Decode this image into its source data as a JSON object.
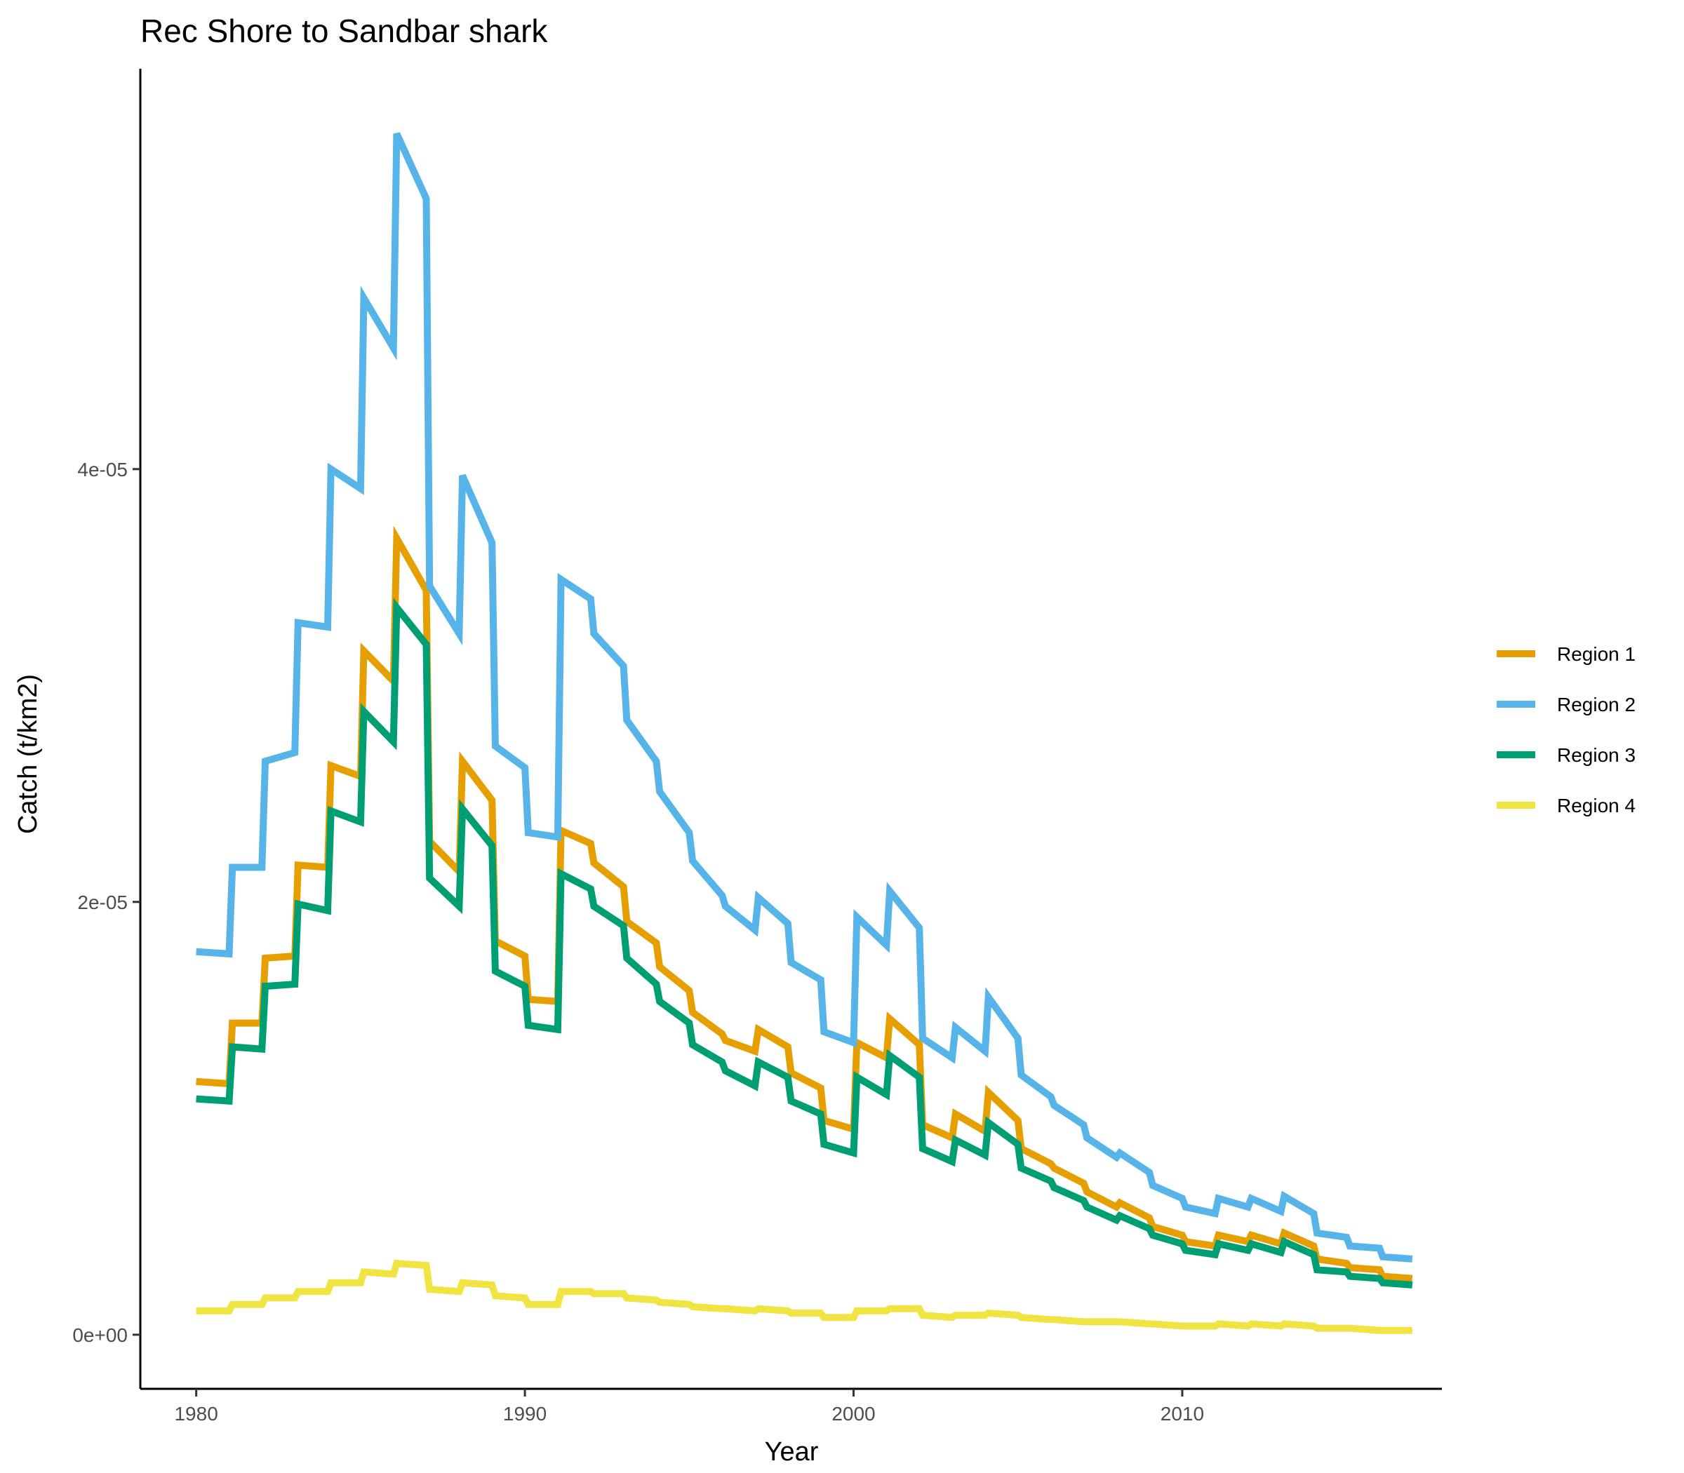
{
  "chart_data": {
    "type": "line",
    "title": "Rec Shore to Sandbar shark",
    "xlabel": "Year",
    "ylabel": "Catch (t/km2)",
    "xlim": [
      1978.3,
      2017.9
    ],
    "ylim": [
      -2.5e-06,
      5.85e-05
    ],
    "x_ticks": [
      1980,
      1990,
      2000,
      2010
    ],
    "x_tick_labels": [
      "1980",
      "1990",
      "2000",
      "2010"
    ],
    "y_ticks": [
      0,
      2e-05,
      4e-05
    ],
    "y_tick_labels": [
      "0e+00",
      "2e-05",
      "4e-05"
    ],
    "grid": false,
    "legend_position": "right",
    "series": [
      {
        "name": "Region 1",
        "color": "#E69F00",
        "points": [
          [
            1980,
            1.17e-05
          ],
          [
            1981,
            1.16e-05
          ],
          [
            1981.1,
            1.44e-05
          ],
          [
            1982,
            1.44e-05
          ],
          [
            1982.1,
            1.74e-05
          ],
          [
            1983,
            1.75e-05
          ],
          [
            1983.1,
            2.17e-05
          ],
          [
            1984,
            2.16e-05
          ],
          [
            1984.1,
            2.63e-05
          ],
          [
            1985,
            2.58e-05
          ],
          [
            1985.1,
            3.16e-05
          ],
          [
            1986,
            3.02e-05
          ],
          [
            1986.1,
            3.68e-05
          ],
          [
            1987,
            3.44e-05
          ],
          [
            1987.1,
            2.28e-05
          ],
          [
            1988,
            2.14e-05
          ],
          [
            1988.1,
            2.65e-05
          ],
          [
            1989,
            2.47e-05
          ],
          [
            1989.1,
            1.82e-05
          ],
          [
            1990,
            1.75e-05
          ],
          [
            1990.1,
            1.55e-05
          ],
          [
            1991,
            1.54e-05
          ],
          [
            1991.1,
            2.33e-05
          ],
          [
            1992,
            2.27e-05
          ],
          [
            1992.1,
            2.18e-05
          ],
          [
            1993,
            2.07e-05
          ],
          [
            1993.1,
            1.91e-05
          ],
          [
            1994,
            1.81e-05
          ],
          [
            1994.1,
            1.7e-05
          ],
          [
            1995,
            1.59e-05
          ],
          [
            1995.1,
            1.49e-05
          ],
          [
            1996,
            1.39e-05
          ],
          [
            1996.1,
            1.36e-05
          ],
          [
            1997,
            1.31e-05
          ],
          [
            1997.1,
            1.41e-05
          ],
          [
            1998,
            1.33e-05
          ],
          [
            1998.1,
            1.21e-05
          ],
          [
            1999,
            1.14e-05
          ],
          [
            1999.1,
            9.9e-06
          ],
          [
            2000,
            9.5e-06
          ],
          [
            2000.1,
            1.35e-05
          ],
          [
            2001,
            1.28e-05
          ],
          [
            2001.1,
            1.46e-05
          ],
          [
            2002,
            1.34e-05
          ],
          [
            2002.1,
            9.7e-06
          ],
          [
            2003,
            9.1e-06
          ],
          [
            2003.1,
            1.02e-05
          ],
          [
            2004,
            9.4e-06
          ],
          [
            2004.1,
            1.12e-05
          ],
          [
            2005,
            9.9e-06
          ],
          [
            2005.1,
            8.6e-06
          ],
          [
            2006,
            7.9e-06
          ],
          [
            2006.1,
            7.7e-06
          ],
          [
            2007,
            7e-06
          ],
          [
            2007.1,
            6.6e-06
          ],
          [
            2008,
            5.9e-06
          ],
          [
            2008.1,
            6.1e-06
          ],
          [
            2009,
            5.4e-06
          ],
          [
            2009.1,
            5e-06
          ],
          [
            2010,
            4.6e-06
          ],
          [
            2010.1,
            4.3e-06
          ],
          [
            2011,
            4.1e-06
          ],
          [
            2011.1,
            4.6e-06
          ],
          [
            2012,
            4.3e-06
          ],
          [
            2012.1,
            4.6e-06
          ],
          [
            2013,
            4.2e-06
          ],
          [
            2013.1,
            4.7e-06
          ],
          [
            2014,
            4.1e-06
          ],
          [
            2014.1,
            3.5e-06
          ],
          [
            2015,
            3.3e-06
          ],
          [
            2015.1,
            3.1e-06
          ],
          [
            2016,
            3e-06
          ],
          [
            2016.1,
            2.7e-06
          ],
          [
            2017,
            2.6e-06
          ]
        ]
      },
      {
        "name": "Region 2",
        "color": "#56B4E9",
        "points": [
          [
            1980,
            1.77e-05
          ],
          [
            1981,
            1.76e-05
          ],
          [
            1981.1,
            2.16e-05
          ],
          [
            1982,
            2.16e-05
          ],
          [
            1982.1,
            2.65e-05
          ],
          [
            1983,
            2.69e-05
          ],
          [
            1983.1,
            3.29e-05
          ],
          [
            1984,
            3.27e-05
          ],
          [
            1984.1,
            4e-05
          ],
          [
            1985,
            3.91e-05
          ],
          [
            1985.1,
            4.79e-05
          ],
          [
            1986,
            4.56e-05
          ],
          [
            1986.1,
            5.55e-05
          ],
          [
            1987,
            5.25e-05
          ],
          [
            1987.1,
            3.46e-05
          ],
          [
            1988,
            3.24e-05
          ],
          [
            1988.1,
            3.97e-05
          ],
          [
            1989,
            3.66e-05
          ],
          [
            1989.1,
            2.72e-05
          ],
          [
            1990,
            2.62e-05
          ],
          [
            1990.1,
            2.32e-05
          ],
          [
            1991,
            2.3e-05
          ],
          [
            1991.1,
            3.49e-05
          ],
          [
            1992,
            3.4e-05
          ],
          [
            1992.1,
            3.24e-05
          ],
          [
            1993,
            3.09e-05
          ],
          [
            1993.1,
            2.84e-05
          ],
          [
            1994,
            2.65e-05
          ],
          [
            1994.1,
            2.51e-05
          ],
          [
            1995,
            2.32e-05
          ],
          [
            1995.1,
            2.19e-05
          ],
          [
            1996,
            2.03e-05
          ],
          [
            1996.1,
            1.98e-05
          ],
          [
            1997,
            1.87e-05
          ],
          [
            1997.1,
            2.02e-05
          ],
          [
            1998,
            1.9e-05
          ],
          [
            1998.1,
            1.72e-05
          ],
          [
            1999,
            1.64e-05
          ],
          [
            1999.1,
            1.4e-05
          ],
          [
            2000,
            1.35e-05
          ],
          [
            2000.1,
            1.93e-05
          ],
          [
            2001,
            1.8e-05
          ],
          [
            2001.1,
            2.05e-05
          ],
          [
            2002,
            1.88e-05
          ],
          [
            2002.1,
            1.37e-05
          ],
          [
            2003,
            1.28e-05
          ],
          [
            2003.1,
            1.42e-05
          ],
          [
            2004,
            1.31e-05
          ],
          [
            2004.1,
            1.56e-05
          ],
          [
            2005,
            1.37e-05
          ],
          [
            2005.1,
            1.2e-05
          ],
          [
            2006,
            1.1e-05
          ],
          [
            2006.1,
            1.06e-05
          ],
          [
            2007,
            9.7e-06
          ],
          [
            2007.1,
            9.1e-06
          ],
          [
            2008,
            8.2e-06
          ],
          [
            2008.1,
            8.4e-06
          ],
          [
            2009,
            7.5e-06
          ],
          [
            2009.1,
            6.9e-06
          ],
          [
            2010,
            6.3e-06
          ],
          [
            2010.1,
            5.9e-06
          ],
          [
            2011,
            5.6e-06
          ],
          [
            2011.1,
            6.3e-06
          ],
          [
            2012,
            5.9e-06
          ],
          [
            2012.1,
            6.3e-06
          ],
          [
            2013,
            5.7e-06
          ],
          [
            2013.1,
            6.4e-06
          ],
          [
            2014,
            5.6e-06
          ],
          [
            2014.1,
            4.7e-06
          ],
          [
            2015,
            4.5e-06
          ],
          [
            2015.1,
            4.1e-06
          ],
          [
            2016,
            4e-06
          ],
          [
            2016.1,
            3.6e-06
          ],
          [
            2017,
            3.5e-06
          ]
        ]
      },
      {
        "name": "Region 3",
        "color": "#009E73",
        "points": [
          [
            1980,
            1.09e-05
          ],
          [
            1981,
            1.08e-05
          ],
          [
            1981.1,
            1.33e-05
          ],
          [
            1982,
            1.32e-05
          ],
          [
            1982.1,
            1.61e-05
          ],
          [
            1983,
            1.62e-05
          ],
          [
            1983.1,
            1.99e-05
          ],
          [
            1984,
            1.96e-05
          ],
          [
            1984.1,
            2.42e-05
          ],
          [
            1985,
            2.37e-05
          ],
          [
            1985.1,
            2.88e-05
          ],
          [
            1986,
            2.74e-05
          ],
          [
            1986.1,
            3.36e-05
          ],
          [
            1987,
            3.19e-05
          ],
          [
            1987.1,
            2.11e-05
          ],
          [
            1988,
            1.98e-05
          ],
          [
            1988.1,
            2.43e-05
          ],
          [
            1989,
            2.26e-05
          ],
          [
            1989.1,
            1.68e-05
          ],
          [
            1990,
            1.61e-05
          ],
          [
            1990.1,
            1.43e-05
          ],
          [
            1991,
            1.41e-05
          ],
          [
            1991.1,
            2.13e-05
          ],
          [
            1992,
            2.06e-05
          ],
          [
            1992.1,
            1.98e-05
          ],
          [
            1993,
            1.89e-05
          ],
          [
            1993.1,
            1.74e-05
          ],
          [
            1994,
            1.62e-05
          ],
          [
            1994.1,
            1.54e-05
          ],
          [
            1995,
            1.44e-05
          ],
          [
            1995.1,
            1.34e-05
          ],
          [
            1996,
            1.26e-05
          ],
          [
            1996.1,
            1.22e-05
          ],
          [
            1997,
            1.15e-05
          ],
          [
            1997.1,
            1.26e-05
          ],
          [
            1998,
            1.19e-05
          ],
          [
            1998.1,
            1.08e-05
          ],
          [
            1999,
            1.02e-05
          ],
          [
            1999.1,
            8.8e-06
          ],
          [
            2000,
            8.4e-06
          ],
          [
            2000.1,
            1.19e-05
          ],
          [
            2001,
            1.11e-05
          ],
          [
            2001.1,
            1.29e-05
          ],
          [
            2002,
            1.19e-05
          ],
          [
            2002.1,
            8.6e-06
          ],
          [
            2003,
            8e-06
          ],
          [
            2003.1,
            9e-06
          ],
          [
            2004,
            8.3e-06
          ],
          [
            2004.1,
            9.8e-06
          ],
          [
            2005,
            8.8e-06
          ],
          [
            2005.1,
            7.7e-06
          ],
          [
            2006,
            7.1e-06
          ],
          [
            2006.1,
            6.8e-06
          ],
          [
            2007,
            6.2e-06
          ],
          [
            2007.1,
            5.9e-06
          ],
          [
            2008,
            5.3e-06
          ],
          [
            2008.1,
            5.5e-06
          ],
          [
            2009,
            4.9e-06
          ],
          [
            2009.1,
            4.6e-06
          ],
          [
            2010,
            4.2e-06
          ],
          [
            2010.1,
            3.9e-06
          ],
          [
            2011,
            3.7e-06
          ],
          [
            2011.1,
            4.2e-06
          ],
          [
            2012,
            3.9e-06
          ],
          [
            2012.1,
            4.2e-06
          ],
          [
            2013,
            3.8e-06
          ],
          [
            2013.1,
            4.3e-06
          ],
          [
            2014,
            3.7e-06
          ],
          [
            2014.1,
            3e-06
          ],
          [
            2015,
            2.9e-06
          ],
          [
            2015.1,
            2.7e-06
          ],
          [
            2016,
            2.6e-06
          ],
          [
            2016.1,
            2.4e-06
          ],
          [
            2017,
            2.3e-06
          ]
        ]
      },
      {
        "name": "Region 4",
        "color": "#F0E442",
        "points": [
          [
            1980,
            1.1e-06
          ],
          [
            1981,
            1.1e-06
          ],
          [
            1981.1,
            1.4e-06
          ],
          [
            1982,
            1.4e-06
          ],
          [
            1982.1,
            1.7e-06
          ],
          [
            1983,
            1.7e-06
          ],
          [
            1983.1,
            2e-06
          ],
          [
            1984,
            2e-06
          ],
          [
            1984.1,
            2.4e-06
          ],
          [
            1985,
            2.4e-06
          ],
          [
            1985.1,
            2.9e-06
          ],
          [
            1986,
            2.8e-06
          ],
          [
            1986.1,
            3.3e-06
          ],
          [
            1987,
            3.2e-06
          ],
          [
            1987.1,
            2.1e-06
          ],
          [
            1988,
            2e-06
          ],
          [
            1988.1,
            2.4e-06
          ],
          [
            1989,
            2.3e-06
          ],
          [
            1989.1,
            1.8e-06
          ],
          [
            1990,
            1.7e-06
          ],
          [
            1990.1,
            1.4e-06
          ],
          [
            1991,
            1.4e-06
          ],
          [
            1991.1,
            2e-06
          ],
          [
            1992,
            2e-06
          ],
          [
            1992.1,
            1.9e-06
          ],
          [
            1993,
            1.9e-06
          ],
          [
            1993.1,
            1.7e-06
          ],
          [
            1994,
            1.6e-06
          ],
          [
            1994.1,
            1.5e-06
          ],
          [
            1995,
            1.4e-06
          ],
          [
            1995.1,
            1.3e-06
          ],
          [
            1996,
            1.2e-06
          ],
          [
            1996.1,
            1.2e-06
          ],
          [
            1997,
            1.1e-06
          ],
          [
            1997.1,
            1.2e-06
          ],
          [
            1998,
            1.1e-06
          ],
          [
            1998.1,
            1e-06
          ],
          [
            1999,
            1e-06
          ],
          [
            1999.1,
            8e-07
          ],
          [
            2000,
            8e-07
          ],
          [
            2000.1,
            1.1e-06
          ],
          [
            2001,
            1.1e-06
          ],
          [
            2001.1,
            1.2e-06
          ],
          [
            2002,
            1.2e-06
          ],
          [
            2002.1,
            9e-07
          ],
          [
            2003,
            8e-07
          ],
          [
            2003.1,
            9e-07
          ],
          [
            2004,
            9e-07
          ],
          [
            2004.1,
            1e-06
          ],
          [
            2005,
            9e-07
          ],
          [
            2005.1,
            8e-07
          ],
          [
            2006,
            7e-07
          ],
          [
            2006.1,
            7e-07
          ],
          [
            2007,
            6e-07
          ],
          [
            2007.1,
            6e-07
          ],
          [
            2008,
            6e-07
          ],
          [
            2008.1,
            6e-07
          ],
          [
            2009,
            5e-07
          ],
          [
            2009.1,
            5e-07
          ],
          [
            2010,
            4e-07
          ],
          [
            2010.1,
            4e-07
          ],
          [
            2011,
            4e-07
          ],
          [
            2011.1,
            5e-07
          ],
          [
            2012,
            4e-07
          ],
          [
            2012.1,
            5e-07
          ],
          [
            2013,
            4e-07
          ],
          [
            2013.1,
            5e-07
          ],
          [
            2014,
            4e-07
          ],
          [
            2014.1,
            3e-07
          ],
          [
            2015,
            3e-07
          ],
          [
            2015.1,
            3e-07
          ],
          [
            2016,
            2e-07
          ],
          [
            2016.1,
            2e-07
          ],
          [
            2017,
            2e-07
          ]
        ]
      }
    ]
  }
}
